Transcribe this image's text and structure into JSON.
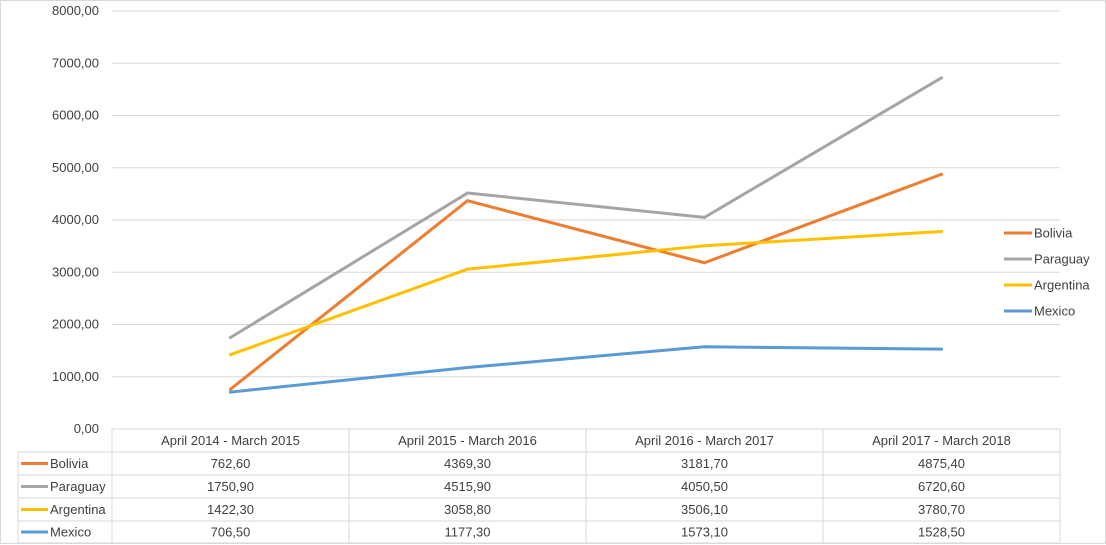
{
  "chart_data": {
    "type": "line",
    "categories": [
      "April 2014 - March 2015",
      "April 2015 - March 2016",
      "April 2016 - March 2017",
      "April 2017 - March 2018"
    ],
    "series": [
      {
        "name": "Bolivia",
        "values": [
          762.6,
          4369.3,
          3181.7,
          4875.4
        ],
        "labels": [
          "762,60",
          "4369,30",
          "3181,70",
          "4875,40"
        ],
        "color": "#ED7D31"
      },
      {
        "name": "Paraguay",
        "values": [
          1750.9,
          4515.9,
          4050.5,
          6720.6
        ],
        "labels": [
          "1750,90",
          "4515,90",
          "4050,50",
          "6720,60"
        ],
        "color": "#A5A5A5"
      },
      {
        "name": "Argentina",
        "values": [
          1422.3,
          3058.8,
          3506.1,
          3780.7
        ],
        "labels": [
          "1422,30",
          "3058,80",
          "3506,10",
          "3780,70"
        ],
        "color": "#FFC000"
      },
      {
        "name": "Mexico",
        "values": [
          706.5,
          1177.3,
          1573.1,
          1528.5
        ],
        "labels": [
          "706,50",
          "1177,30",
          "1573,10",
          "1528,50"
        ],
        "color": "#5B9BD5"
      }
    ],
    "ylim": [
      0,
      8000
    ],
    "yticks": [
      "0,00",
      "1000,00",
      "2000,00",
      "3000,00",
      "4000,00",
      "5000,00",
      "6000,00",
      "7000,00",
      "8000,00"
    ],
    "grid": true,
    "legend_position": "right",
    "data_table": true
  }
}
